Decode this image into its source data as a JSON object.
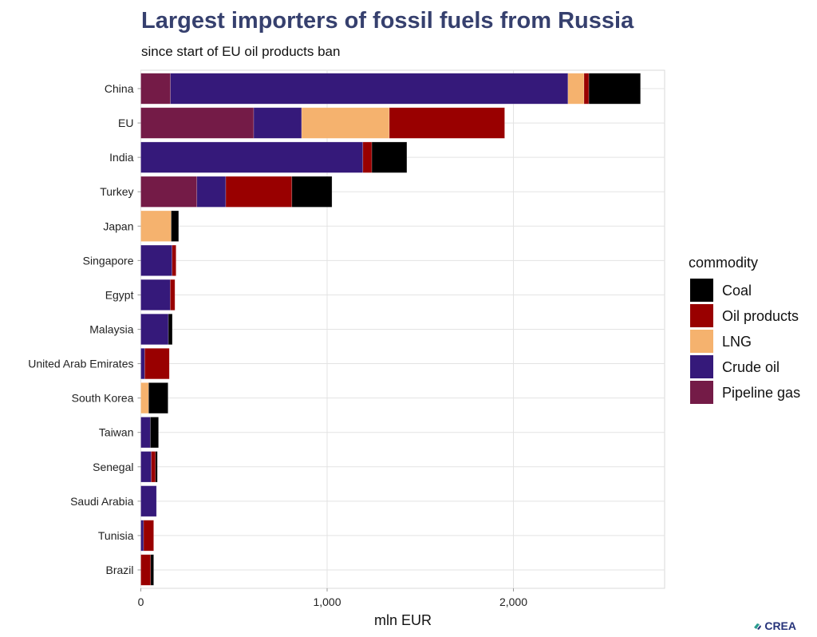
{
  "chart_data": {
    "type": "bar",
    "orientation": "horizontal",
    "stacked": true,
    "title": "Largest importers of fossil fuels from Russia",
    "subtitle": "since start of EU oil products ban",
    "xlabel": "mln EUR",
    "ylabel": "",
    "xlim": [
      0,
      2800
    ],
    "xticks": [
      0,
      1000,
      2000
    ],
    "xtick_labels": [
      "0",
      "1,000",
      "2,000"
    ],
    "grid": true,
    "legend": {
      "title": "commodity",
      "position": "right",
      "order": [
        "Coal",
        "Oil products",
        "LNG",
        "Crude oil",
        "Pipeline gas"
      ]
    },
    "categories": [
      "China",
      "EU",
      "India",
      "Turkey",
      "Japan",
      "Singapore",
      "Egypt",
      "Malaysia",
      "United Arab Emirates",
      "South Korea",
      "Taiwan",
      "Senegal",
      "Saudi Arabia",
      "Tunisia",
      "Brazil"
    ],
    "series": [
      {
        "name": "Pipeline gas",
        "color": "#741b47",
        "values": [
          159,
          606,
          0,
          301,
          0,
          0,
          0,
          0,
          0,
          0,
          0,
          0,
          0,
          0,
          0
        ]
      },
      {
        "name": "Crude oil",
        "color": "#35197a",
        "values": [
          2134,
          257,
          1192,
          155,
          0,
          168,
          158,
          148,
          21,
          0,
          51,
          56,
          84,
          15,
          0
        ]
      },
      {
        "name": "LNG",
        "color": "#f5b26e",
        "values": [
          86,
          471,
          0,
          0,
          163,
          0,
          0,
          0,
          0,
          42,
          0,
          0,
          0,
          0,
          0
        ]
      },
      {
        "name": "Oil products",
        "color": "#990000",
        "values": [
          26,
          619,
          48,
          355,
          0,
          21,
          25,
          0,
          132,
          0,
          0,
          23,
          0,
          54,
          53
        ]
      },
      {
        "name": "Coal",
        "color": "#000000",
        "values": [
          277,
          0,
          188,
          215,
          40,
          0,
          0,
          21,
          0,
          104,
          44,
          10,
          0,
          0,
          16
        ]
      }
    ]
  },
  "logo": {
    "text": "CREA"
  }
}
